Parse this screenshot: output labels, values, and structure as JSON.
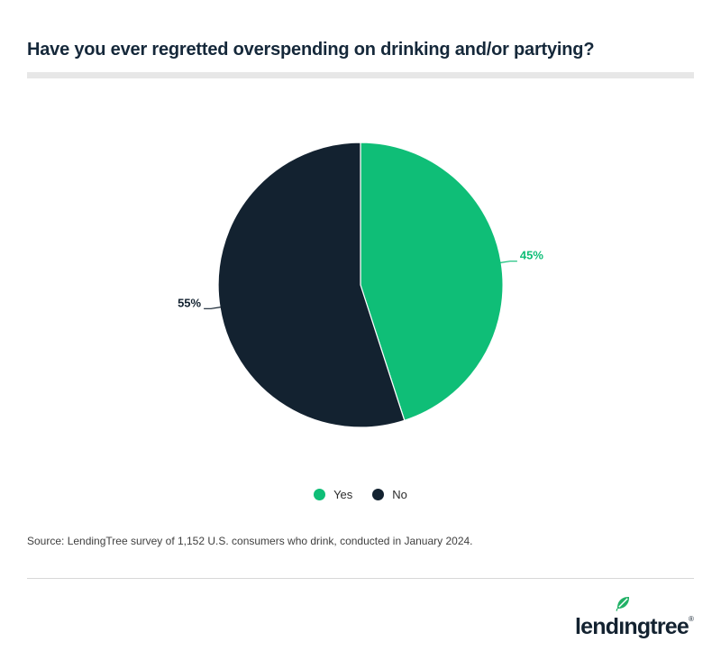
{
  "page": {
    "title": "Have you ever regretted overspending on drinking and/or partying?",
    "source": "Source: LendingTree survey of 1,152 U.S. consumers who drink, conducted in January 2024."
  },
  "chart_data": {
    "type": "pie",
    "title": "Have you ever regretted overspending on drinking and/or partying?",
    "labels": [
      "Yes",
      "No"
    ],
    "values": [
      45,
      55
    ],
    "data_labels": [
      "45%",
      "55%"
    ],
    "colors": [
      "#0fbe77",
      "#132230"
    ],
    "start_angle_deg": 0,
    "direction": "clockwise",
    "legend_position": "bottom",
    "donut": false
  },
  "branding": {
    "logo_text": "lendingtree",
    "logo_pre": "lend",
    "logo_i": "ı",
    "logo_post": "ngtree",
    "registered_mark": "®",
    "logo_color": "#132230",
    "leaf_color": "#21b166"
  },
  "colors": {
    "accent_green": "#0fbe77",
    "dark_navy": "#132230",
    "title_text": "#15283a",
    "title_accent_bar": "#e7e7e7",
    "footer_rule": "#d8d8d8",
    "source_text": "#3f3f3f"
  }
}
